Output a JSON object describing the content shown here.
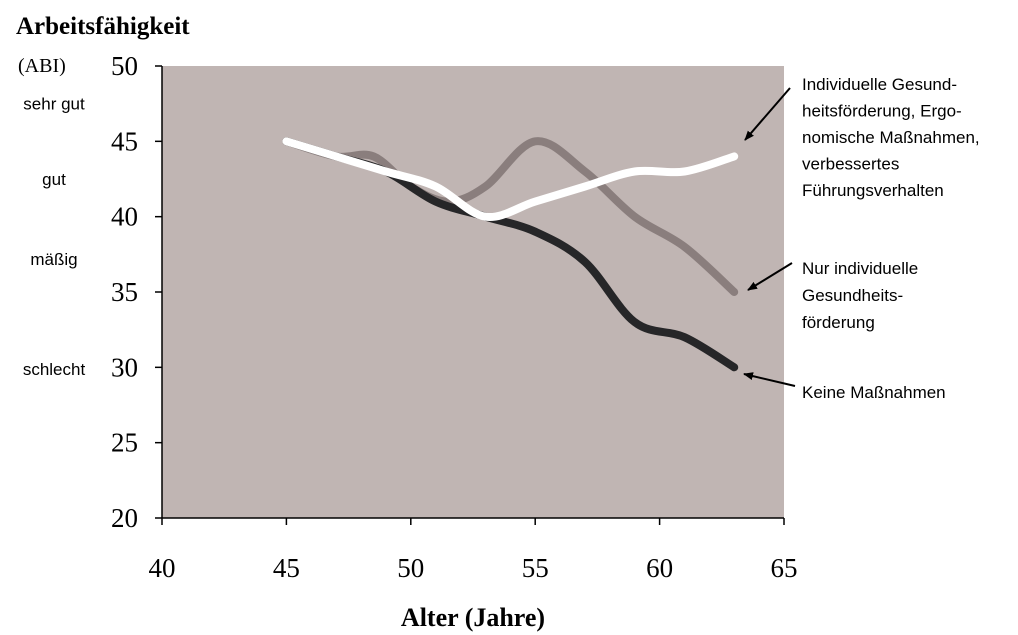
{
  "chart_data": {
    "type": "line",
    "title": "Arbeitsfähigkeit",
    "ylabel": "(ABI)",
    "xlabel": "Alter (Jahre)",
    "xlim": [
      40,
      65
    ],
    "ylim": [
      20,
      50
    ],
    "xticks": [
      40,
      45,
      50,
      55,
      60,
      65
    ],
    "yticks": [
      20,
      25,
      30,
      35,
      40,
      45,
      50
    ],
    "grid": false,
    "plot_background": "#c0b5b3",
    "y_category_labels": [
      {
        "label": "sehr gut",
        "y": 47.5
      },
      {
        "label": "gut",
        "y": 42.5
      },
      {
        "label": "mäßig",
        "y": 37.2
      },
      {
        "label": "schlecht",
        "y": 29.9
      }
    ],
    "series": [
      {
        "id": "white",
        "color": "#ffffff",
        "x": [
          45,
          47,
          49,
          51,
          53,
          55,
          57,
          59,
          61,
          63
        ],
        "y": [
          45,
          44,
          43,
          42,
          40,
          41,
          42,
          43,
          43,
          44
        ],
        "label_lines": [
          "Individuelle Gesund-",
          "heitsförderung, Ergo-",
          "nomische Maßnahmen,",
          "verbessertes",
          "Führungsverhalten"
        ]
      },
      {
        "id": "gray",
        "color": "#8a7e7d",
        "x": [
          45,
          47,
          48.5,
          50,
          51.5,
          53,
          55,
          57,
          59,
          61,
          63
        ],
        "y": [
          45,
          44,
          44,
          42,
          41,
          42,
          45,
          43,
          40,
          38,
          35
        ],
        "label_lines": [
          "Nur individuelle",
          "Gesundheits-",
          "förderung"
        ]
      },
      {
        "id": "black",
        "color": "#262628",
        "x": [
          45,
          47,
          49,
          51,
          53,
          55,
          57,
          59,
          61,
          63
        ],
        "y": [
          45,
          44,
          43,
          41,
          40,
          39,
          37,
          33,
          32,
          30
        ],
        "label_lines": [
          "Keine Maßnahmen"
        ]
      }
    ]
  }
}
